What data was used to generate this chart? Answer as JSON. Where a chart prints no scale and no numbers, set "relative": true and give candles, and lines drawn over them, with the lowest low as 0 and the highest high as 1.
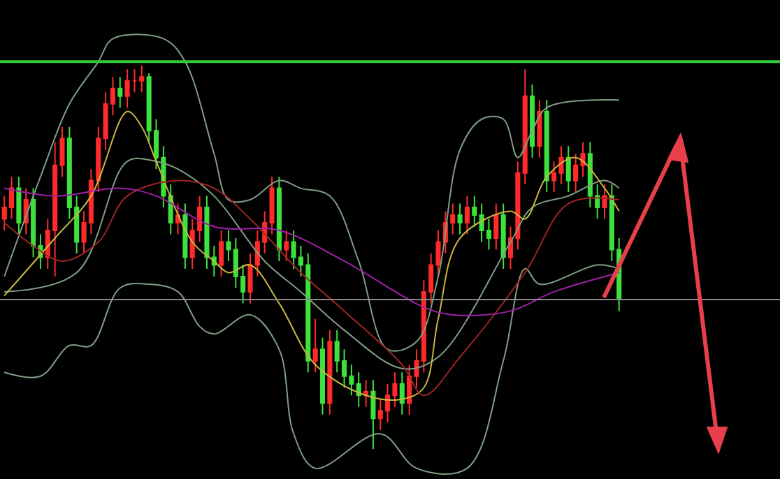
{
  "chart_data": {
    "type": "candlestick",
    "relative": true,
    "tick_labels": false,
    "categories": [
      null,
      null,
      null,
      null,
      null,
      null,
      null,
      null,
      null,
      null,
      null,
      null,
      null,
      null,
      null,
      null,
      null,
      null,
      null,
      null,
      null,
      null,
      null,
      null,
      null,
      null,
      null,
      null,
      null,
      null,
      null,
      null,
      null,
      null,
      null,
      null,
      null,
      null,
      null,
      null,
      null,
      null,
      null,
      null,
      null,
      null,
      null,
      null,
      null,
      null,
      null,
      null,
      null,
      null,
      null,
      null,
      null,
      null,
      null,
      null,
      null,
      null,
      null,
      null,
      null,
      null,
      null,
      null,
      null,
      null,
      null,
      null,
      null,
      null,
      null,
      null,
      null,
      null,
      null,
      null,
      null,
      null,
      null,
      null,
      null,
      null
    ],
    "colors": [
      "#ff2a2a",
      "#ff2a2a",
      "#3ee03e",
      "#ff2a2a",
      "#3ee03e",
      "#3ee03e",
      "#ff2a2a",
      "#ff2a2a",
      "#ff2a2a",
      "#3ee03e",
      "#3ee03e",
      "#ff2a2a",
      "#ff2a2a",
      "#ff2a2a",
      "#ff2a2a",
      "#ff2a2a",
      "#3ee03e",
      "#ff2a2a",
      "#ff2a2a",
      "#ff2a2a",
      "#3ee03e",
      "#3ee03e",
      "#3ee03e",
      "#3ee03e",
      "#ff2a2a",
      "#3ee03e",
      "#ff2a2a",
      "#ff2a2a",
      "#3ee03e",
      "#3ee03e",
      "#ff2a2a",
      "#3ee03e",
      "#3ee03e",
      "#3ee03e",
      "#ff2a2a",
      "#ff2a2a",
      "#ff2a2a",
      "#ff2a2a",
      "#3ee03e",
      "#ff2a2a",
      "#3ee03e",
      "#3ee03e",
      "#3ee03e",
      "#ff2a2a",
      "#3ee03e",
      "#ff2a2a",
      "#3ee03e",
      "#3ee03e",
      "#3ee03e",
      "#3ee03e",
      "#ff2a2a",
      "#3ee03e",
      "#ff2a2a",
      "#ff2a2a",
      "#ff2a2a",
      "#3ee03e",
      "#ff2a2a",
      "#ff2a2a",
      "#ff2a2a",
      "#ff2a2a",
      "#ff2a2a",
      "#ff2a2a",
      "#ff2a2a",
      "#3ee03e",
      "#ff2a2a",
      "#3ee03e",
      "#3ee03e",
      "#3ee03e",
      "#ff2a2a",
      "#3ee03e",
      "#ff2a2a",
      "#ff2a2a",
      "#ff2a2a",
      "#3ee03e",
      "#ff2a2a",
      "#3ee03e",
      "#ff2a2a",
      "#ff2a2a",
      "#3ee03e",
      "#ff2a2a",
      "#ff2a2a",
      "#3ee03e",
      "#3ee03e",
      "#ff2a2a",
      "#3ee03e",
      "#3ee03e"
    ],
    "ohlc": [
      [
        0.6,
        0.66,
        0.57,
        0.63
      ],
      [
        0.63,
        0.71,
        0.6,
        0.68
      ],
      [
        0.68,
        0.71,
        0.56,
        0.59
      ],
      [
        0.59,
        0.68,
        0.56,
        0.65
      ],
      [
        0.65,
        0.68,
        0.5,
        0.53
      ],
      [
        0.53,
        0.56,
        0.47,
        0.5
      ],
      [
        0.5,
        0.6,
        0.47,
        0.57
      ],
      [
        0.57,
        0.8,
        0.45,
        0.74
      ],
      [
        0.74,
        0.84,
        0.71,
        0.81
      ],
      [
        0.81,
        0.84,
        0.6,
        0.63
      ],
      [
        0.63,
        0.66,
        0.51,
        0.54
      ],
      [
        0.54,
        0.62,
        0.51,
        0.59
      ],
      [
        0.59,
        0.73,
        0.56,
        0.7
      ],
      [
        0.7,
        0.84,
        0.67,
        0.81
      ],
      [
        0.81,
        0.93,
        0.78,
        0.9
      ],
      [
        0.9,
        0.97,
        0.87,
        0.94
      ],
      [
        0.94,
        0.97,
        0.89,
        0.92
      ],
      [
        0.92,
        0.99,
        0.89,
        0.96
      ],
      [
        0.96,
        0.99,
        0.93,
        0.96
      ],
      [
        0.96,
        1.0,
        0.93,
        0.97
      ],
      [
        0.97,
        0.98,
        0.8,
        0.83
      ],
      [
        0.83,
        0.86,
        0.73,
        0.76
      ],
      [
        0.76,
        0.79,
        0.63,
        0.66
      ],
      [
        0.66,
        0.69,
        0.56,
        0.59
      ],
      [
        0.59,
        0.64,
        0.56,
        0.61
      ],
      [
        0.61,
        0.64,
        0.47,
        0.5
      ],
      [
        0.5,
        0.6,
        0.47,
        0.57
      ],
      [
        0.57,
        0.66,
        0.54,
        0.63
      ],
      [
        0.63,
        0.66,
        0.47,
        0.5
      ],
      [
        0.5,
        0.53,
        0.45,
        0.48
      ],
      [
        0.48,
        0.57,
        0.45,
        0.54
      ],
      [
        0.54,
        0.57,
        0.49,
        0.52
      ],
      [
        0.52,
        0.55,
        0.42,
        0.45
      ],
      [
        0.45,
        0.48,
        0.38,
        0.41
      ],
      [
        0.41,
        0.51,
        0.38,
        0.48
      ],
      [
        0.48,
        0.57,
        0.45,
        0.54
      ],
      [
        0.54,
        0.62,
        0.51,
        0.59
      ],
      [
        0.59,
        0.71,
        0.56,
        0.68
      ],
      [
        0.68,
        0.71,
        0.49,
        0.52
      ],
      [
        0.52,
        0.57,
        0.49,
        0.54
      ],
      [
        0.54,
        0.57,
        0.47,
        0.5
      ],
      [
        0.5,
        0.53,
        0.45,
        0.48
      ],
      [
        0.48,
        0.51,
        0.2,
        0.23
      ],
      [
        0.23,
        0.34,
        0.2,
        0.26
      ],
      [
        0.26,
        0.29,
        0.09,
        0.12
      ],
      [
        0.12,
        0.31,
        0.09,
        0.28
      ],
      [
        0.28,
        0.31,
        0.2,
        0.23
      ],
      [
        0.23,
        0.26,
        0.16,
        0.19
      ],
      [
        0.19,
        0.22,
        0.14,
        0.17
      ],
      [
        0.17,
        0.2,
        0.11,
        0.14
      ],
      [
        0.14,
        0.18,
        0.11,
        0.15
      ],
      [
        0.15,
        0.18,
        0.0,
        0.08
      ],
      [
        0.08,
        0.13,
        0.05,
        0.1
      ],
      [
        0.1,
        0.17,
        0.07,
        0.14
      ],
      [
        0.14,
        0.2,
        0.11,
        0.17
      ],
      [
        0.17,
        0.2,
        0.09,
        0.12
      ],
      [
        0.12,
        0.22,
        0.09,
        0.19
      ],
      [
        0.19,
        0.26,
        0.16,
        0.23
      ],
      [
        0.23,
        0.44,
        0.2,
        0.41
      ],
      [
        0.41,
        0.51,
        0.38,
        0.48
      ],
      [
        0.48,
        0.57,
        0.45,
        0.54
      ],
      [
        0.54,
        0.62,
        0.51,
        0.59
      ],
      [
        0.59,
        0.64,
        0.56,
        0.61
      ],
      [
        0.61,
        0.64,
        0.56,
        0.59
      ],
      [
        0.59,
        0.66,
        0.56,
        0.63
      ],
      [
        0.63,
        0.66,
        0.58,
        0.61
      ],
      [
        0.61,
        0.64,
        0.54,
        0.57
      ],
      [
        0.57,
        0.6,
        0.52,
        0.55
      ],
      [
        0.55,
        0.64,
        0.52,
        0.61
      ],
      [
        0.61,
        0.64,
        0.47,
        0.5
      ],
      [
        0.5,
        0.58,
        0.47,
        0.55
      ],
      [
        0.55,
        0.75,
        0.52,
        0.72
      ],
      [
        0.72,
        0.99,
        0.69,
        0.92
      ],
      [
        0.92,
        0.95,
        0.76,
        0.79
      ],
      [
        0.79,
        0.91,
        0.76,
        0.88
      ],
      [
        0.88,
        0.91,
        0.67,
        0.7
      ],
      [
        0.7,
        0.75,
        0.67,
        0.72
      ],
      [
        0.72,
        0.79,
        0.69,
        0.76
      ],
      [
        0.76,
        0.79,
        0.67,
        0.7
      ],
      [
        0.7,
        0.77,
        0.67,
        0.74
      ],
      [
        0.74,
        0.8,
        0.71,
        0.77
      ],
      [
        0.77,
        0.8,
        0.63,
        0.66
      ],
      [
        0.66,
        0.69,
        0.6,
        0.63
      ],
      [
        0.63,
        0.69,
        0.6,
        0.66
      ],
      [
        0.66,
        0.69,
        0.49,
        0.52
      ],
      [
        0.52,
        0.55,
        0.36,
        0.39
      ]
    ],
    "series": [
      {
        "type": "line",
        "color": "#7f9f85",
        "values": [
          0.45,
          null,
          null,
          null,
          null,
          0.71,
          null,
          null,
          null,
          0.9,
          null,
          null,
          null,
          1.01,
          null,
          1.07,
          null,
          null,
          null,
          null,
          null,
          null,
          1.07,
          null,
          null,
          1.01,
          null,
          null,
          null,
          0.77,
          null,
          0.65,
          null,
          null,
          0.65,
          null,
          null,
          null,
          0.7,
          null,
          null,
          0.68,
          null,
          null,
          null,
          0.66,
          null,
          null,
          null,
          0.49,
          null,
          null,
          null,
          0.26,
          null,
          null,
          null,
          0.28,
          null,
          null,
          0.45,
          null,
          null,
          0.78,
          null,
          null,
          0.86,
          null,
          null,
          0.86,
          null,
          0.76,
          null,
          0.83,
          null,
          0.89,
          null,
          null,
          null,
          null,
          null,
          null,
          null,
          null,
          null,
          0.91
        ]
      },
      {
        "type": "line",
        "color": "#7f9f85",
        "values": [
          0.41,
          null,
          null,
          null,
          null,
          null,
          null,
          null,
          null,
          null,
          0.46,
          null,
          null,
          null,
          null,
          null,
          null,
          0.75,
          null,
          null,
          null,
          0.75,
          null,
          null,
          0.73,
          null,
          null,
          null,
          null,
          0.66,
          null,
          null,
          null,
          null,
          null,
          null,
          0.49,
          null,
          null,
          null,
          null,
          0.41,
          null,
          null,
          null,
          null,
          null,
          0.31,
          null,
          null,
          null,
          null,
          null,
          null,
          null,
          0.21,
          null,
          null,
          null,
          null,
          0.24,
          null,
          null,
          null,
          null,
          null,
          null,
          null,
          null,
          null,
          0.54,
          null,
          null,
          0.63,
          null,
          null,
          null,
          null,
          0.66,
          null,
          null,
          null,
          null,
          0.7,
          null,
          0.68
        ]
      },
      {
        "type": "line",
        "color": "#7f9f85",
        "values": [
          0.2,
          null,
          null,
          null,
          null,
          0.19,
          null,
          null,
          null,
          0.27,
          null,
          null,
          0.27,
          null,
          null,
          null,
          0.42,
          null,
          null,
          null,
          0.43,
          null,
          null,
          null,
          0.41,
          null,
          null,
          0.32,
          null,
          0.3,
          null,
          null,
          null,
          null,
          0.35,
          null,
          null,
          null,
          0.26,
          null,
          0.04,
          null,
          null,
          -0.05,
          null,
          null,
          null,
          null,
          null,
          null,
          null,
          null,
          0.04,
          null,
          null,
          null,
          null,
          -0.05,
          null,
          null,
          null,
          null,
          null,
          null,
          -0.05,
          null,
          null,
          null,
          null,
          0.23,
          null,
          null,
          0.47,
          null,
          0.43,
          null,
          null,
          null,
          null,
          null,
          null,
          null,
          0.48,
          null,
          null,
          0.47
        ]
      },
      {
        "type": "line",
        "color": "#c8b840",
        "values": [
          0.4,
          null,
          null,
          null,
          null,
          null,
          null,
          0.55,
          null,
          null,
          null,
          null,
          0.66,
          null,
          null,
          null,
          null,
          0.88,
          null,
          0.84,
          null,
          0.75,
          null,
          null,
          null,
          null,
          0.54,
          null,
          null,
          0.49,
          null,
          0.46,
          null,
          null,
          0.48,
          null,
          null,
          null,
          0.38,
          null,
          null,
          null,
          null,
          0.22,
          null,
          null,
          null,
          null,
          null,
          null,
          0.14,
          null,
          null,
          null,
          null,
          0.13,
          null,
          null,
          0.16,
          null,
          0.34,
          null,
          null,
          0.55,
          null,
          null,
          null,
          null,
          null,
          null,
          0.62,
          null,
          0.6,
          null,
          null,
          0.71,
          null,
          null,
          null,
          0.76,
          null,
          null,
          null,
          0.68,
          null,
          0.62
        ]
      },
      {
        "type": "line",
        "color": "#a02424",
        "values": [
          0.59,
          null,
          null,
          null,
          0.53,
          null,
          null,
          null,
          0.49,
          null,
          null,
          null,
          null,
          0.54,
          null,
          null,
          null,
          0.66,
          null,
          null,
          null,
          null,
          null,
          null,
          0.7,
          null,
          null,
          null,
          null,
          0.68,
          null,
          null,
          null,
          null,
          0.6,
          null,
          null,
          null,
          null,
          null,
          null,
          0.46,
          null,
          null,
          null,
          null,
          null,
          0.36,
          null,
          null,
          null,
          null,
          null,
          null,
          null,
          0.22,
          null,
          null,
          0.14,
          null,
          null,
          null,
          null,
          0.24,
          null,
          null,
          null,
          null,
          null,
          null,
          null,
          null,
          0.46,
          null,
          null,
          null,
          null,
          null,
          0.64,
          null,
          null,
          null,
          null,
          null,
          null,
          0.65
        ]
      },
      {
        "type": "line",
        "color": "#a020a8",
        "values": [
          0.68,
          null,
          null,
          null,
          null,
          null,
          null,
          0.66,
          null,
          null,
          null,
          null,
          null,
          null,
          null,
          null,
          0.68,
          null,
          null,
          null,
          null,
          0.66,
          null,
          null,
          null,
          null,
          null,
          null,
          null,
          0.58,
          null,
          null,
          null,
          null,
          null,
          null,
          null,
          null,
          0.57,
          null,
          null,
          null,
          null,
          null,
          null,
          null,
          null,
          0.49,
          null,
          null,
          null,
          null,
          null,
          null,
          null,
          null,
          null,
          null,
          0.37,
          null,
          null,
          null,
          0.35,
          null,
          null,
          null,
          null,
          null,
          null,
          null,
          0.36,
          null,
          null,
          null,
          null,
          null,
          0.41,
          null,
          null,
          null,
          null,
          null,
          null,
          null,
          null,
          0.46
        ]
      }
    ],
    "ref_lines": [
      {
        "axis": "y",
        "value": 1.01,
        "color": "#33cc33"
      },
      {
        "axis": "y",
        "value": 0.39,
        "color": "#8a8a8a"
      }
    ]
  }
}
